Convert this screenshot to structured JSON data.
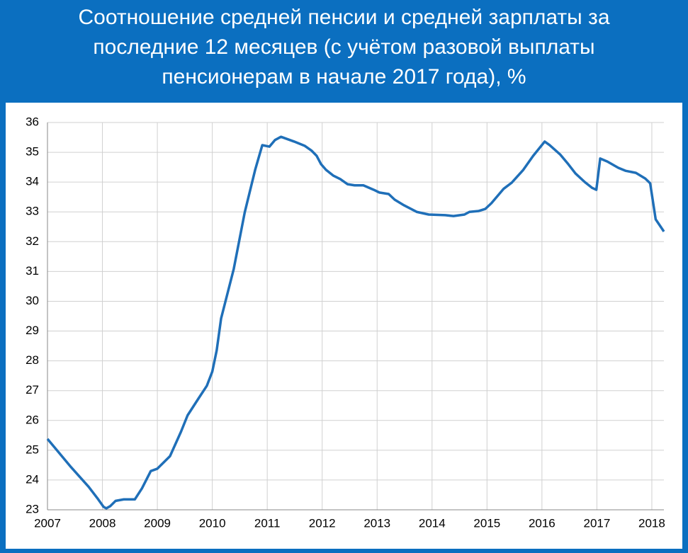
{
  "chart_data": {
    "type": "line",
    "title": "Соотношение средней пенсии и средней зарплаты за последние 12 месяцев (с учётом разовой выплаты пенсионерам в начале 2017 года), %",
    "x": [
      2007,
      2007.43,
      2007.75,
      2007.92,
      2008.02,
      2008.07,
      2008.14,
      2008.24,
      2008.39,
      2008.59,
      2008.72,
      2008.88,
      2009.0,
      2009.23,
      2009.43,
      2009.55,
      2009.75,
      2009.9,
      2010.0,
      2010.08,
      2010.16,
      2010.39,
      2010.59,
      2010.78,
      2010.91,
      2011.04,
      2011.14,
      2011.25,
      2011.49,
      2011.68,
      2011.81,
      2011.9,
      2011.98,
      2012.07,
      2012.2,
      2012.33,
      2012.46,
      2012.59,
      2012.75,
      2012.94,
      2013.04,
      2013.21,
      2013.32,
      2013.49,
      2013.72,
      2013.94,
      2014.24,
      2014.39,
      2014.59,
      2014.68,
      2014.85,
      2014.97,
      2015.08,
      2015.3,
      2015.45,
      2015.66,
      2015.84,
      2016.05,
      2016.14,
      2016.33,
      2016.48,
      2016.61,
      2016.78,
      2016.91,
      2016.99,
      2017.06,
      2017.19,
      2017.39,
      2017.52,
      2017.71,
      2017.88,
      2017.97,
      2018.07,
      2018.22
    ],
    "series": [
      {
        "name": "Соотношение",
        "color": "#1f6fb8",
        "values": [
          25.38,
          24.43,
          23.77,
          23.36,
          23.1,
          23.05,
          23.12,
          23.3,
          23.35,
          23.35,
          23.72,
          24.3,
          24.38,
          24.8,
          25.62,
          26.17,
          26.74,
          27.16,
          27.64,
          28.35,
          29.42,
          31.08,
          32.98,
          34.41,
          35.24,
          35.19,
          35.41,
          35.52,
          35.36,
          35.22,
          35.05,
          34.88,
          34.6,
          34.41,
          34.22,
          34.1,
          33.93,
          33.89,
          33.89,
          33.74,
          33.65,
          33.6,
          33.41,
          33.22,
          33.0,
          32.91,
          32.89,
          32.86,
          32.91,
          33.0,
          33.03,
          33.1,
          33.29,
          33.77,
          33.98,
          34.41,
          34.88,
          35.36,
          35.24,
          34.93,
          34.6,
          34.29,
          34.0,
          33.81,
          33.74,
          34.79,
          34.69,
          34.48,
          34.38,
          34.31,
          34.12,
          33.96,
          32.75,
          32.34
        ]
      }
    ],
    "xlim": [
      2007,
      2018.22
    ],
    "xticks": [
      2007,
      2008,
      2009,
      2010,
      2011,
      2012,
      2013,
      2014,
      2015,
      2016,
      2017,
      2018
    ],
    "ylim": [
      23,
      36
    ],
    "yticks": [
      23,
      24,
      25,
      26,
      27,
      28,
      29,
      30,
      31,
      32,
      33,
      34,
      35,
      36
    ],
    "grid": true
  }
}
